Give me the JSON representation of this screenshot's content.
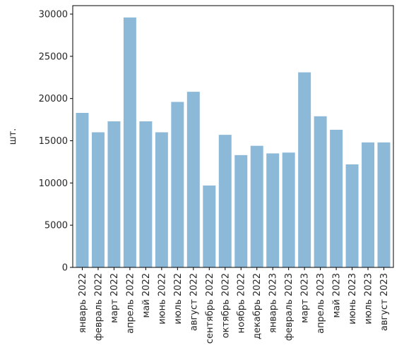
{
  "chart_data": {
    "type": "bar",
    "title": "",
    "xlabel": "",
    "ylabel": "шт.",
    "ylim": [
      0,
      31000
    ],
    "yticks": [
      0,
      5000,
      10000,
      15000,
      20000,
      25000,
      30000
    ],
    "grid": false,
    "legend": "none",
    "bar_color": "#8db9d9",
    "categories": [
      "январь 2022",
      "февраль 2022",
      "март 2022",
      "апрель 2022",
      "май 2022",
      "июнь 2022",
      "июль 2022",
      "август 2022",
      "сентябрь 2022",
      "октябрь 2022",
      "ноябрь 2022",
      "декабрь 2022",
      "январь 2023",
      "февраль 2023",
      "март 2023",
      "апрель 2023",
      "май 2023",
      "июнь 2023",
      "июль 2023",
      "август 2023"
    ],
    "values": [
      18300,
      16000,
      17300,
      29600,
      17300,
      16000,
      19600,
      20800,
      9700,
      15700,
      13300,
      14400,
      13500,
      13600,
      23100,
      17900,
      16300,
      12200,
      14800,
      14800
    ]
  }
}
